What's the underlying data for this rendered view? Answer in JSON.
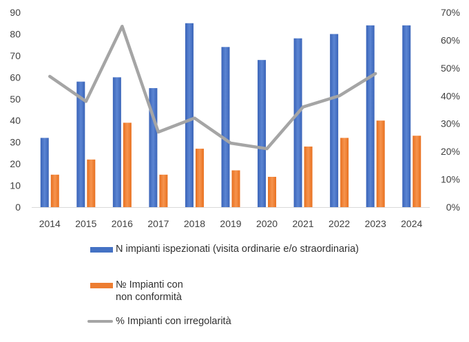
{
  "chart_data": {
    "type": "bar",
    "categories": [
      "2014",
      "2015",
      "2016",
      "2017",
      "2018",
      "2019",
      "2020",
      "2021",
      "2022",
      "2023",
      "2024"
    ],
    "series": [
      {
        "name": "N impianti ispezionati (visita ordinarie e/o straordinaria)",
        "type": "bar",
        "axis": "left",
        "color": "#4472C4",
        "values": [
          32,
          58,
          60,
          55,
          85,
          74,
          68,
          78,
          80,
          84,
          84
        ]
      },
      {
        "name": "№ Impianti con\nnon conformità",
        "type": "bar",
        "axis": "left",
        "color": "#ED7D31",
        "values": [
          15,
          22,
          39,
          15,
          27,
          17,
          14,
          28,
          32,
          40,
          33
        ]
      },
      {
        "name": "% Impianti con irregolarità",
        "type": "line",
        "axis": "right",
        "color": "#A5A5A5",
        "values": [
          0.47,
          0.38,
          0.65,
          0.27,
          0.32,
          0.23,
          0.21,
          0.36,
          0.4,
          0.48,
          null
        ]
      }
    ],
    "y_left": {
      "ticks": [
        "0",
        "10",
        "20",
        "30",
        "40",
        "50",
        "60",
        "70",
        "80",
        "90"
      ],
      "lim": [
        0,
        90
      ]
    },
    "y_right": {
      "ticks": [
        "0%",
        "10%",
        "20%",
        "30%",
        "40%",
        "50%",
        "60%",
        "70%"
      ],
      "lim": [
        0,
        0.7
      ]
    },
    "grid": false,
    "legend_position": "bottom"
  },
  "legend": {
    "bar1": "N impianti ispezionati (visita ordinarie e/o straordinaria)",
    "bar2_line1": "№ Impianti con",
    "bar2_line2": "non conformità",
    "line": "% Impianti con irregolarità"
  }
}
